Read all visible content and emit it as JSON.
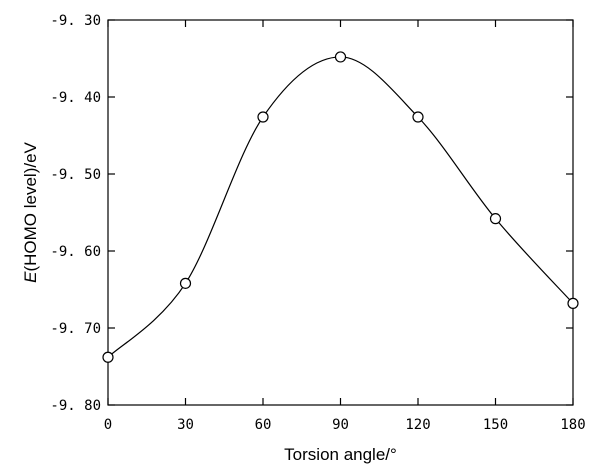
{
  "chart_data": {
    "type": "scatter",
    "title": "",
    "xlabel": "Torsion angle/°",
    "ylabel_italic": "E",
    "ylabel_rest": "(HOMO level)/eV",
    "xlim": [
      0,
      180
    ],
    "ylim": [
      -9.8,
      -9.3
    ],
    "x_ticks": [
      0,
      30,
      60,
      90,
      120,
      150,
      180
    ],
    "x_tick_labels": [
      "0",
      "30",
      "60",
      "90",
      "120",
      "150",
      "180"
    ],
    "y_ticks": [
      -9.3,
      -9.4,
      -9.5,
      -9.6,
      -9.7,
      -9.8
    ],
    "y_tick_labels": [
      "-9. 30",
      "-9. 40",
      "-9. 50",
      "-9. 60",
      "-9. 70",
      "-9. 80"
    ],
    "grid": false,
    "series": [
      {
        "marker": "open-circle",
        "line": "smooth",
        "x": [
          0,
          30,
          60,
          90,
          120,
          150,
          180
        ],
        "y": [
          -9.738,
          -9.642,
          -9.426,
          -9.348,
          -9.426,
          -9.558,
          -9.668
        ]
      }
    ],
    "colors": {
      "line": "#000000",
      "marker_stroke": "#000000",
      "background": "#ffffff"
    }
  }
}
